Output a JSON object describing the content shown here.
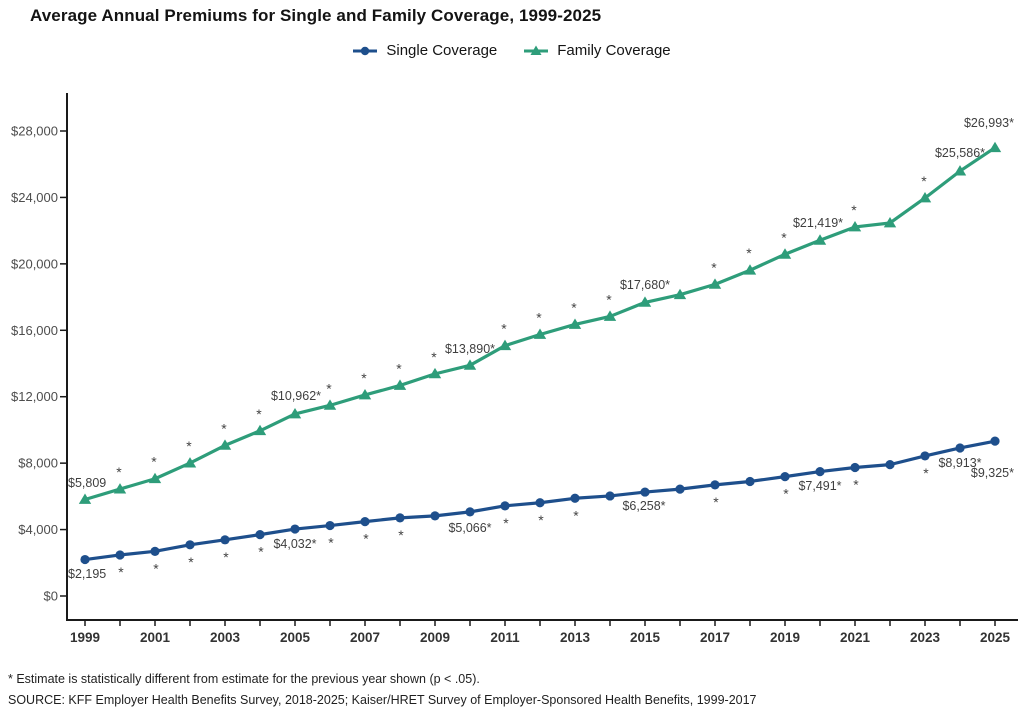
{
  "title": "Average Annual Premiums for Single and Family Coverage, 1999-2025",
  "legend": {
    "items": [
      {
        "label": "Single Coverage",
        "color": "#1e4f8c",
        "marker": "circle"
      },
      {
        "label": "Family Coverage",
        "color": "#2e9d7a",
        "marker": "triangle"
      }
    ]
  },
  "footnotes": [
    "* Estimate is statistically different from estimate for the previous year shown (p < .05).",
    "SOURCE: KFF Employer Health Benefits Survey, 2018-2025; Kaiser/HRET Survey of Employer-Sponsored Health Benefits, 1999-2017"
  ],
  "colors": {
    "single": "#1e4f8c",
    "family": "#2e9d7a",
    "axis": "#1a1a1a",
    "y_tick_label": "#4d4d4d",
    "x_tick_label": "#333333",
    "point_label": "#3f3f3f",
    "asterisk": "#444444"
  },
  "chart_data": {
    "type": "line",
    "title": "Average Annual Premiums for Single and Family Coverage, 1999-2025",
    "xlabel": "",
    "ylabel": "",
    "ylim": [
      0,
      28000
    ],
    "grid": false,
    "legend_position": "top",
    "x": [
      1999,
      2000,
      2001,
      2002,
      2003,
      2004,
      2005,
      2006,
      2007,
      2008,
      2009,
      2010,
      2011,
      2012,
      2013,
      2014,
      2015,
      2016,
      2017,
      2018,
      2019,
      2020,
      2021,
      2022,
      2023,
      2024,
      2025
    ],
    "x_tick_labels": [
      "1999",
      "2001",
      "2003",
      "2005",
      "2007",
      "2009",
      "2011",
      "2013",
      "2015",
      "2017",
      "2019",
      "2021",
      "2023",
      "2025"
    ],
    "y_ticks": [
      0,
      4000,
      8000,
      12000,
      16000,
      20000,
      24000,
      28000
    ],
    "y_tick_labels": [
      "$0",
      "$4,000",
      "$8,000",
      "$12,000",
      "$16,000",
      "$20,000",
      "$24,000",
      "$28,000"
    ],
    "series": [
      {
        "name": "Single Coverage",
        "color": "#1e4f8c",
        "marker": "circle",
        "values": [
          2195,
          2471,
          2689,
          3083,
          3383,
          3695,
          4032,
          4242,
          4479,
          4704,
          4824,
          5066,
          5429,
          5615,
          5884,
          6025,
          6258,
          6435,
          6690,
          6896,
          7188,
          7491,
          7739,
          7911,
          8435,
          8913,
          9325
        ],
        "sig_asterisk_years": [
          2000,
          2001,
          2002,
          2003,
          2004,
          2006,
          2007,
          2008,
          2011,
          2012,
          2013,
          2017,
          2019,
          2021,
          2023
        ],
        "point_labels": {
          "1999": "$2,195",
          "2005": "$4,032*",
          "2010": "$5,066*",
          "2015": "$6,258*",
          "2020": "$7,491*",
          "2024": "$8,913*",
          "2025": "$9,325*"
        }
      },
      {
        "name": "Family Coverage",
        "color": "#2e9d7a",
        "marker": "triangle",
        "values": [
          5809,
          6438,
          7061,
          8003,
          9068,
          9950,
          10962,
          11480,
          12106,
          12680,
          13375,
          13890,
          15073,
          15745,
          16351,
          16834,
          17680,
          18142,
          18764,
          19616,
          20576,
          21419,
          22221,
          22463,
          23968,
          25586,
          26993
        ],
        "sig_asterisk_years": [
          2000,
          2001,
          2002,
          2003,
          2004,
          2006,
          2007,
          2008,
          2009,
          2011,
          2012,
          2013,
          2014,
          2017,
          2018,
          2019,
          2021,
          2023
        ],
        "point_labels": {
          "1999": "$5,809",
          "2005": "$10,962*",
          "2010": "$13,890*",
          "2015": "$17,680*",
          "2020": "$21,419*",
          "2024": "$25,586*",
          "2025": "$26,993*"
        }
      }
    ]
  }
}
